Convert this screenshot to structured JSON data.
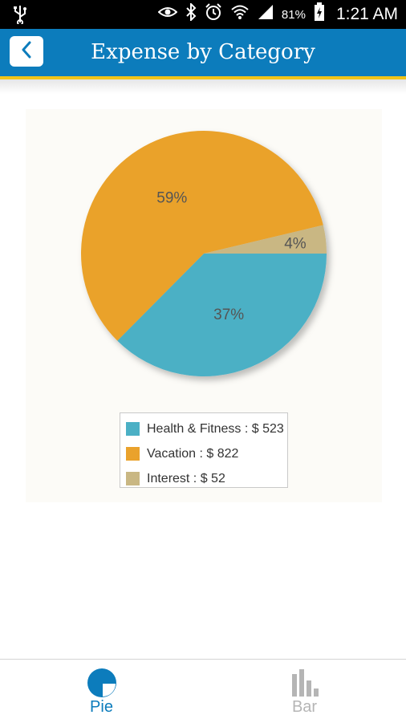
{
  "status_bar": {
    "battery": "81%",
    "time": "1:21 AM",
    "icons": [
      "usb-icon",
      "eye-icon",
      "bluetooth-icon",
      "alarm-icon",
      "wifi-icon",
      "signal-icon",
      "battery-icon"
    ]
  },
  "app_bar": {
    "title": "Expense by Category",
    "back_icon": "chevron-left-icon",
    "color": "#0c7cbc",
    "accent": "#f0c419"
  },
  "chart_data": {
    "type": "pie",
    "slices": [
      {
        "label": "Health & Fitness : $ 523",
        "category": "Health & Fitness",
        "value": 523,
        "percent_label": "37%",
        "color": "#4bb0c5"
      },
      {
        "label": "Vacation : $ 822",
        "category": "Vacation",
        "value": 822,
        "percent_label": "59%",
        "color": "#eaa22c"
      },
      {
        "label": "Interest : $ 52",
        "category": "Interest",
        "value": 52,
        "percent_label": "4%",
        "color": "#c9b783"
      }
    ],
    "legend_position": "bottom"
  },
  "bottom_nav": {
    "items": [
      {
        "label": "Pie",
        "icon": "pie-chart-icon",
        "active": true,
        "color": "#0c7cbc"
      },
      {
        "label": "Bar",
        "icon": "bar-chart-icon",
        "active": false,
        "color": "#b5b5b5"
      }
    ]
  }
}
